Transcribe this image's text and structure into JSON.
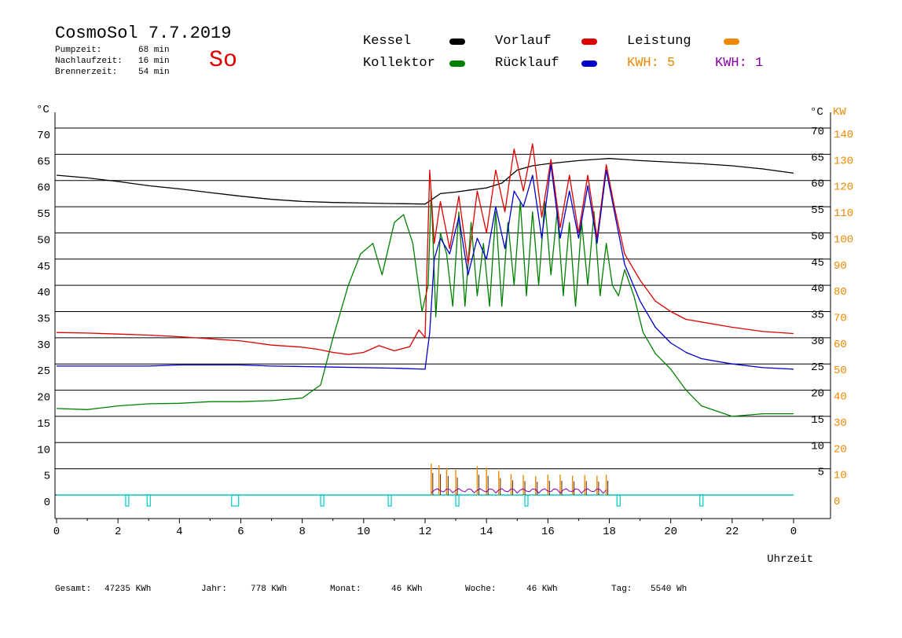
{
  "header": {
    "title": "CosmoSol 7.7.2019",
    "day": "So",
    "stats": [
      {
        "label": "Pumpzeit:",
        "value": "68 min"
      },
      {
        "label": "Nachlaufzeit:",
        "value": "16 min"
      },
      {
        "label": "Brennerzeit:",
        "value": "54 min"
      }
    ]
  },
  "legend": {
    "kessel": "Kessel",
    "kollektor": "Kollektor",
    "vorlauf": "Vorlauf",
    "ruecklauf": "Rücklauf",
    "leistung": "Leistung",
    "kwh1": "KWH: 5",
    "kwh2": "KWH: 1"
  },
  "colors": {
    "kessel": "#000000",
    "kollektor": "#008000",
    "vorlauf": "#dd0000",
    "ruecklauf": "#0000cc",
    "leistung": "#ee8800",
    "kwh2": "#8800aa",
    "pump": "#00c8c8"
  },
  "footer": [
    {
      "label": "Gesamt:",
      "value": "47235 KWh"
    },
    {
      "label": "Jahr:",
      "value": "778 KWh"
    },
    {
      "label": "Monat:",
      "value": "46 KWh"
    },
    {
      "label": "Woche:",
      "value": "46 KWh"
    },
    {
      "label": "Tag:",
      "value": "5540 Wh"
    }
  ],
  "chart_data": {
    "type": "line",
    "xlabel": "Uhrzeit",
    "ylabel_left": "°C",
    "ylabel_right_inner": "°C",
    "ylabel_right_outer": "KW",
    "x_range": [
      0,
      24
    ],
    "x_ticks": [
      "0",
      "2",
      "4",
      "6",
      "8",
      "10",
      "12",
      "14",
      "16",
      "18",
      "20",
      "22",
      "0"
    ],
    "y_range": [
      0,
      70
    ],
    "y_ticks_left": [
      "0",
      "5",
      "10",
      "15",
      "20",
      "25",
      "30",
      "35",
      "40",
      "45",
      "50",
      "55",
      "60",
      "65",
      "70"
    ],
    "y_ticks_right_inner": [
      "5",
      "10",
      "15",
      "20",
      "25",
      "30",
      "35",
      "40",
      "45",
      "50",
      "55",
      "60",
      "65",
      "70"
    ],
    "y_ticks_right_outer": [
      "0",
      "10",
      "20",
      "30",
      "40",
      "50",
      "60",
      "70",
      "80",
      "90",
      "100",
      "110",
      "120",
      "130",
      "140"
    ],
    "grid": true,
    "series": [
      {
        "name": "Kessel",
        "color": "#000000",
        "x": [
          0,
          1,
          2,
          3,
          4,
          5,
          6,
          7,
          8,
          9,
          10,
          11,
          12,
          12.5,
          13,
          13.5,
          14,
          14.5,
          15,
          15.5,
          16,
          16.5,
          17,
          17.5,
          18,
          18.5,
          19,
          20,
          21,
          22,
          23,
          24
        ],
        "y": [
          61,
          60.5,
          59.8,
          59,
          58.4,
          57.7,
          57,
          56.4,
          56,
          55.8,
          55.7,
          55.6,
          55.5,
          57.5,
          57.8,
          58.2,
          58.6,
          59.5,
          62,
          62.8,
          63.2,
          63.5,
          63.8,
          64,
          64.2,
          64,
          63.8,
          63.5,
          63.2,
          62.8,
          62.2,
          61.4
        ]
      },
      {
        "name": "Kollektor",
        "color": "#008000",
        "x": [
          0,
          1,
          2,
          3,
          4,
          5,
          6,
          7,
          8,
          8.6,
          9,
          9.5,
          9.9,
          10.3,
          10.6,
          11,
          11.3,
          11.6,
          11.9,
          12.1,
          12.2,
          12.35,
          12.5,
          12.7,
          12.9,
          13.1,
          13.3,
          13.5,
          13.7,
          13.9,
          14.1,
          14.3,
          14.5,
          14.7,
          14.9,
          15.1,
          15.3,
          15.5,
          15.7,
          15.9,
          16.1,
          16.3,
          16.5,
          16.7,
          16.9,
          17.1,
          17.3,
          17.5,
          17.7,
          17.9,
          18.1,
          18.3,
          18.5,
          18.8,
          19.1,
          19.5,
          20,
          20.5,
          21,
          22,
          23,
          24
        ],
        "y": [
          16.5,
          16.3,
          17,
          17.4,
          17.5,
          17.8,
          17.8,
          18,
          18.5,
          21,
          30,
          40,
          46,
          48,
          42,
          52,
          53.5,
          48,
          35,
          40,
          58,
          34,
          50,
          46,
          36,
          54,
          36,
          52,
          38,
          48,
          36,
          54,
          36,
          52,
          40,
          56,
          38,
          54,
          40,
          56,
          42,
          54,
          38,
          52,
          36,
          52,
          40,
          54,
          38,
          48,
          40,
          38,
          43,
          38,
          31,
          27,
          24,
          20,
          17,
          15,
          15.5,
          15.5
        ]
      },
      {
        "name": "Vorlauf",
        "color": "#dd0000",
        "x": [
          0,
          1,
          2,
          3,
          4,
          5,
          6,
          7,
          8,
          8.5,
          9,
          9.5,
          10,
          10.5,
          11,
          11.5,
          11.8,
          12,
          12.15,
          12.3,
          12.5,
          12.8,
          13.1,
          13.4,
          13.7,
          14,
          14.3,
          14.6,
          14.9,
          15.2,
          15.5,
          15.8,
          16.1,
          16.4,
          16.7,
          17,
          17.3,
          17.6,
          17.9,
          18.2,
          18.5,
          19,
          19.5,
          20,
          20.5,
          21,
          22,
          23,
          24
        ],
        "y": [
          31,
          30.9,
          30.7,
          30.5,
          30.2,
          29.8,
          29.4,
          28.6,
          28.2,
          27.8,
          27.2,
          26.8,
          27.2,
          28.5,
          27.5,
          28.3,
          31.5,
          30,
          62,
          48,
          56,
          47,
          57,
          44,
          58,
          50,
          62,
          54,
          66,
          58,
          67,
          53,
          64,
          51,
          61,
          50,
          61,
          49,
          63,
          54,
          46,
          41,
          37,
          35,
          33.5,
          33,
          32,
          31.2,
          30.8
        ]
      },
      {
        "name": "Rücklauf",
        "color": "#0000cc",
        "x": [
          0,
          1,
          2,
          3,
          4,
          5,
          6,
          7,
          8,
          9,
          10,
          11,
          12,
          12.15,
          12.3,
          12.5,
          12.8,
          13.1,
          13.4,
          13.7,
          14,
          14.3,
          14.6,
          14.9,
          15.2,
          15.5,
          15.8,
          16.1,
          16.4,
          16.7,
          17,
          17.3,
          17.6,
          17.9,
          18.2,
          18.5,
          19,
          19.5,
          20,
          20.5,
          21,
          22,
          23,
          24
        ],
        "y": [
          24.6,
          24.6,
          24.6,
          24.6,
          24.8,
          24.8,
          24.8,
          24.6,
          24.5,
          24.4,
          24.3,
          24.2,
          24,
          31,
          45,
          49,
          46,
          53,
          42,
          49,
          45,
          55,
          47,
          58,
          55,
          61,
          49,
          63,
          49,
          58,
          49,
          59,
          48,
          62,
          53,
          44,
          37,
          32,
          29,
          27.2,
          26,
          25,
          24.3,
          24
        ]
      }
    ],
    "leistung": {
      "name": "Leistung",
      "color": "#ee8800",
      "unit": "KW",
      "x": [
        12.2,
        12.45,
        12.7,
        13.0,
        13.7,
        14.0,
        14.4,
        14.8,
        15.2,
        15.6,
        16.0,
        16.4,
        16.8,
        17.2,
        17.6,
        17.9
      ],
      "y": [
        6,
        5.7,
        5.2,
        4.8,
        5.5,
        5.2,
        4.6,
        4.0,
        3.8,
        3.6,
        3.9,
        3.9,
        3.7,
        3.8,
        3.7,
        3.9
      ]
    }
  }
}
